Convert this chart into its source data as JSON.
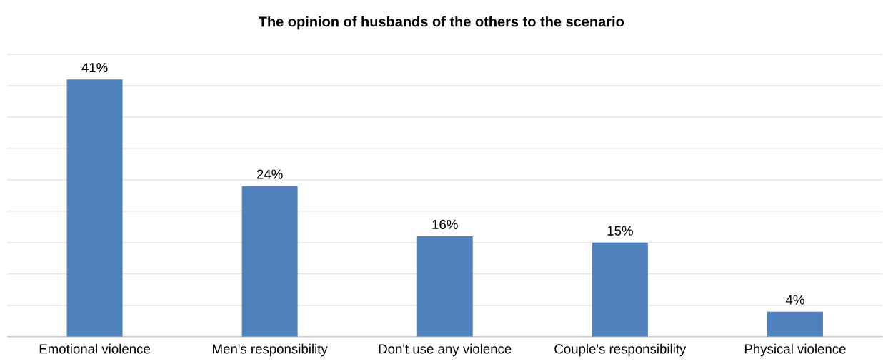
{
  "chart_data": {
    "type": "bar",
    "title": "The opinion of husbands of the others to the scenario",
    "categories": [
      "Emotional violence",
      "Men's responsibility",
      "Don't use any violence",
      "Couple's responsibility",
      "Physical violence"
    ],
    "values": [
      41,
      24,
      16,
      15,
      4
    ],
    "value_labels": [
      "41%",
      "24%",
      "16%",
      "15%",
      "4%"
    ],
    "color": "#4f81bd",
    "ylim": [
      0,
      45
    ],
    "yticks": [
      {
        "value": 0,
        "label": null
      },
      {
        "value": 5,
        "label": null
      },
      {
        "value": 10,
        "label": null
      },
      {
        "value": 15,
        "label": null
      },
      {
        "value": 20,
        "label": null
      },
      {
        "value": 25,
        "label": null
      },
      {
        "value": 30,
        "label": null
      },
      {
        "value": 35,
        "label": null
      },
      {
        "value": 40,
        "label": null
      },
      {
        "value": 45,
        "label": null
      }
    ],
    "grid": "y",
    "tick_labels": "x"
  }
}
